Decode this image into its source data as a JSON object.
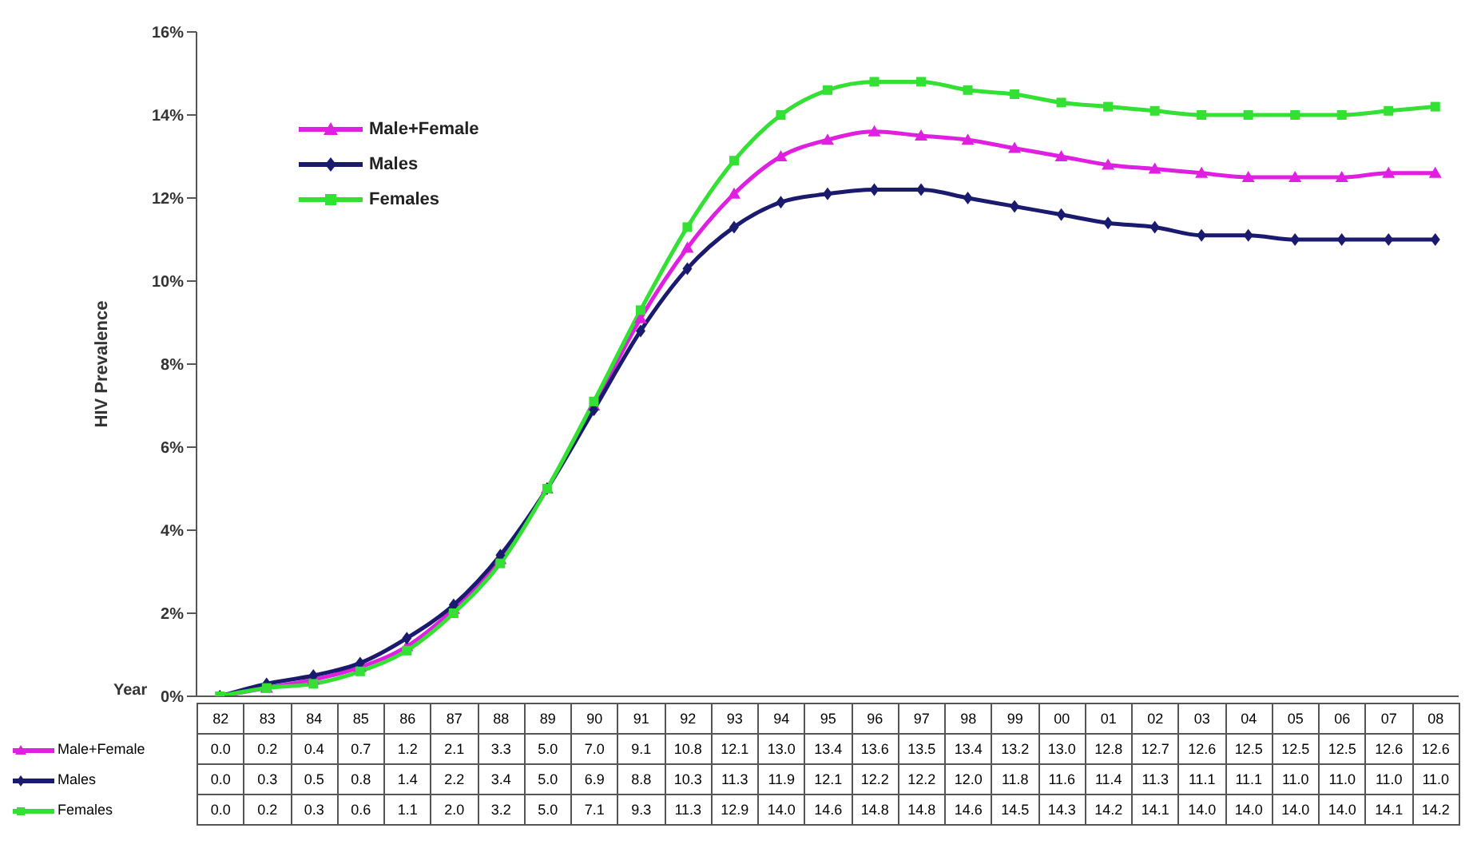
{
  "chart_data": {
    "type": "line",
    "ylabel": "HIV Prevalence",
    "xlabel": "Year",
    "categories": [
      "82",
      "83",
      "84",
      "85",
      "86",
      "87",
      "88",
      "89",
      "90",
      "91",
      "92",
      "93",
      "94",
      "95",
      "96",
      "97",
      "98",
      "99",
      "00",
      "01",
      "02",
      "03",
      "04",
      "05",
      "06",
      "07",
      "08"
    ],
    "series": [
      {
        "name": "Male+Female",
        "color": "#e020e0",
        "marker": "triangle",
        "values": [
          0.0,
          0.2,
          0.4,
          0.7,
          1.2,
          2.1,
          3.3,
          5.0,
          7.0,
          9.1,
          10.8,
          12.1,
          13.0,
          13.4,
          13.6,
          13.5,
          13.4,
          13.2,
          13.0,
          12.8,
          12.7,
          12.6,
          12.5,
          12.5,
          12.5,
          12.6,
          12.6
        ],
        "value_labels": [
          "0.0",
          "0.2",
          "0.4",
          "0.7",
          "1.2",
          "2.1",
          "3.3",
          "5.0",
          "7.0",
          "9.1",
          "10.8",
          "12.1",
          "13.0",
          "13.4",
          "13.6",
          "13.5",
          "13.4",
          "13.2",
          "13.0",
          "12.8",
          "12.7",
          "12.6",
          "12.5",
          "12.5",
          "12.5",
          "12.6",
          "12.6"
        ]
      },
      {
        "name": "Males",
        "color": "#1a1a6e",
        "marker": "diamond",
        "values": [
          0.0,
          0.3,
          0.5,
          0.8,
          1.4,
          2.2,
          3.4,
          5.0,
          6.9,
          8.8,
          10.3,
          11.3,
          11.9,
          12.1,
          12.2,
          12.2,
          12.0,
          11.8,
          11.6,
          11.4,
          11.3,
          11.1,
          11.1,
          11.0,
          11.0,
          11.0,
          11.0
        ],
        "value_labels": [
          "0.0",
          "0.3",
          "0.5",
          "0.8",
          "1.4",
          "2.2",
          "3.4",
          "5.0",
          "6.9",
          "8.8",
          "10.3",
          "11.3",
          "11.9",
          "12.1",
          "12.2",
          "12.2",
          "12.0",
          "11.8",
          "11.6",
          "11.4",
          "11.3",
          "11.1",
          "11.1",
          "11.0",
          "11.0",
          "11.0",
          "11.0"
        ]
      },
      {
        "name": "Females",
        "color": "#33e033",
        "marker": "square",
        "values": [
          0.0,
          0.2,
          0.3,
          0.6,
          1.1,
          2.0,
          3.2,
          5.0,
          7.1,
          9.3,
          11.3,
          12.9,
          14.0,
          14.6,
          14.8,
          14.8,
          14.6,
          14.5,
          14.3,
          14.2,
          14.1,
          14.0,
          14.0,
          14.0,
          14.0,
          14.1,
          14.2
        ],
        "value_labels": [
          "0.0",
          "0.2",
          "0.3",
          "0.6",
          "1.1",
          "2.0",
          "3.2",
          "5.0",
          "7.1",
          "9.3",
          "11.3",
          "12.9",
          "14.0",
          "14.6",
          "14.8",
          "14.8",
          "14.6",
          "14.5",
          "14.3",
          "14.2",
          "14.1",
          "14.0",
          "14.0",
          "14.0",
          "14.0",
          "14.1",
          "14.2"
        ]
      }
    ],
    "ylim": [
      0,
      16
    ],
    "yticks": [
      {
        "value": 0,
        "label": "0%"
      },
      {
        "value": 2,
        "label": "2%"
      },
      {
        "value": 4,
        "label": "4%"
      },
      {
        "value": 6,
        "label": "6%"
      },
      {
        "value": 8,
        "label": "8%"
      },
      {
        "value": 10,
        "label": "10%"
      },
      {
        "value": 12,
        "label": "12%"
      },
      {
        "value": 14,
        "label": "14%"
      },
      {
        "value": 16,
        "label": "16%"
      }
    ],
    "grid": false,
    "legend": "top left",
    "line_style": "solid"
  }
}
